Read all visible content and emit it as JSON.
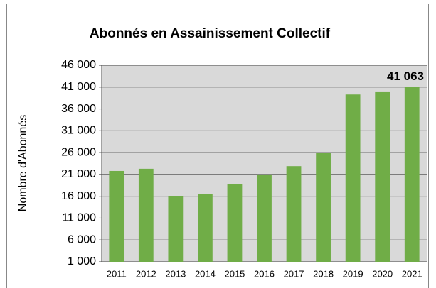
{
  "chart_data": {
    "type": "bar",
    "title": "Abonnés en Assainissement Collectif",
    "y_label": "Nombre d'Abonnés",
    "categories": [
      "2011",
      "2012",
      "2013",
      "2014",
      "2015",
      "2016",
      "2017",
      "2018",
      "2019",
      "2020",
      "2021"
    ],
    "values": [
      21800,
      22300,
      16000,
      16500,
      18800,
      21000,
      22900,
      25900,
      39300,
      40000,
      41063
    ],
    "value_labels": [
      null,
      null,
      null,
      null,
      null,
      null,
      null,
      null,
      null,
      null,
      "41 063"
    ],
    "color": "#70ad47",
    "ylim": [
      1000,
      46000
    ],
    "yticks": [
      {
        "value": 1000,
        "label": "1 000"
      },
      {
        "value": 6000,
        "label": "6 000"
      },
      {
        "value": 11000,
        "label": "11 000"
      },
      {
        "value": 16000,
        "label": "16 000"
      },
      {
        "value": 21000,
        "label": "21 000"
      },
      {
        "value": 26000,
        "label": "26 000"
      },
      {
        "value": 31000,
        "label": "31 000"
      },
      {
        "value": 36000,
        "label": "36 000"
      },
      {
        "value": 41000,
        "label": "41 000"
      },
      {
        "value": 46000,
        "label": "46 000"
      }
    ],
    "grid": true
  }
}
